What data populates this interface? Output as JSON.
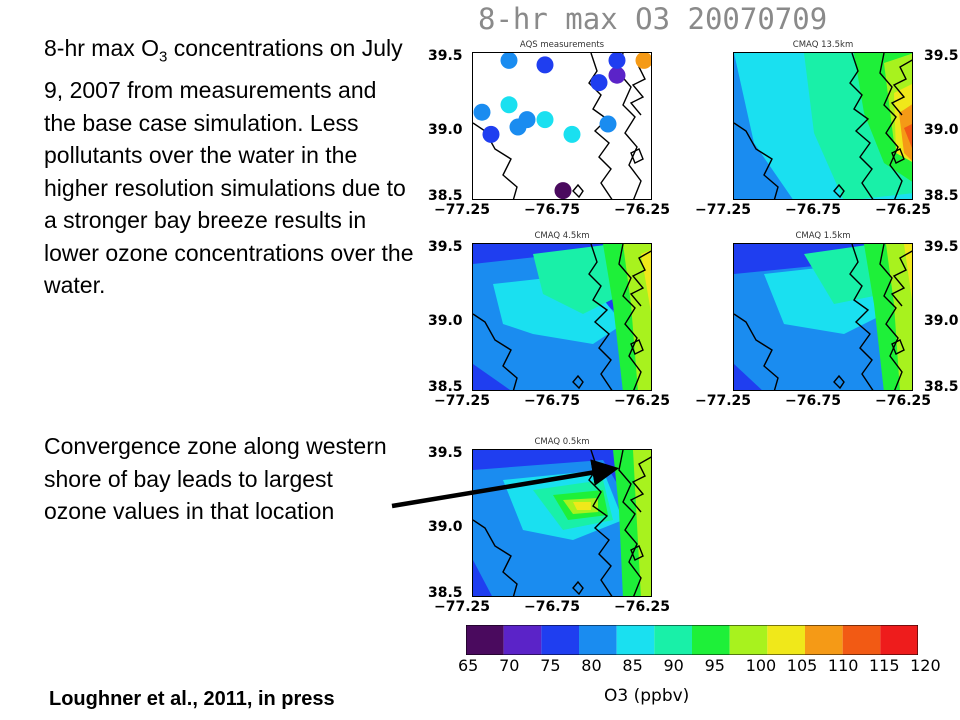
{
  "title": "8-hr max O3 20070709",
  "description": {
    "prefix": "8-hr max O",
    "subscript": "3",
    "rest": " concentrations on July 9, 2007 from measurements and the base case simulation.  Less pollutants over the water in the higher resolution simulations due to a stronger bay breeze results in lower ozone concentrations over the water."
  },
  "convergence_note": "Convergence zone along western shore of bay leads to largest ozone values in that location",
  "citation": "Loughner et al., 2011, in press",
  "panels": [
    {
      "title": "AQS measurements",
      "kind": "points"
    },
    {
      "title": "CMAQ 13.5km",
      "kind": "field"
    },
    {
      "title": "CMAQ 4.5km",
      "kind": "field"
    },
    {
      "title": "CMAQ 1.5km",
      "kind": "field"
    },
    {
      "title": "CMAQ 0.5km",
      "kind": "field"
    }
  ],
  "axes": {
    "y_ticks": [
      "39.5",
      "39.0",
      "38.5"
    ],
    "x_ticks": [
      "−77.25",
      "−76.75",
      "−76.25"
    ],
    "lat_range": [
      38.5,
      39.5
    ],
    "lon_range": [
      -77.25,
      -76.25
    ]
  },
  "aqs_points": [
    {
      "lon": -77.05,
      "lat": 39.45,
      "o3": 80
    },
    {
      "lon": -76.85,
      "lat": 39.42,
      "o3": 75
    },
    {
      "lon": -76.55,
      "lat": 39.3,
      "o3": 75
    },
    {
      "lon": -76.45,
      "lat": 39.35,
      "o3": 70
    },
    {
      "lon": -76.3,
      "lat": 39.45,
      "o3": 110
    },
    {
      "lon": -76.45,
      "lat": 39.45,
      "o3": 75
    },
    {
      "lon": -77.2,
      "lat": 39.1,
      "o3": 80
    },
    {
      "lon": -77.15,
      "lat": 38.95,
      "o3": 75
    },
    {
      "lon": -77.05,
      "lat": 39.15,
      "o3": 85
    },
    {
      "lon": -77.0,
      "lat": 39.0,
      "o3": 80
    },
    {
      "lon": -76.95,
      "lat": 39.05,
      "o3": 80
    },
    {
      "lon": -76.85,
      "lat": 39.05,
      "o3": 85
    },
    {
      "lon": -76.7,
      "lat": 38.95,
      "o3": 85
    },
    {
      "lon": -76.5,
      "lat": 39.02,
      "o3": 80
    },
    {
      "lon": -76.75,
      "lat": 38.57,
      "o3": 65
    }
  ],
  "colorbar": {
    "ticks": [
      "65",
      "70",
      "75",
      "80",
      "85",
      "90",
      "95",
      "100",
      "105",
      "110",
      "115",
      "120"
    ],
    "colors": [
      "#4a0a5e",
      "#5b23c8",
      "#1f3ef0",
      "#1a8cf0",
      "#1ae0f0",
      "#19f0a8",
      "#1ef039",
      "#a8f21e",
      "#f0e81a",
      "#f59a16",
      "#f25a14",
      "#ee1c1c"
    ],
    "unit": "O3 (ppbv)"
  }
}
